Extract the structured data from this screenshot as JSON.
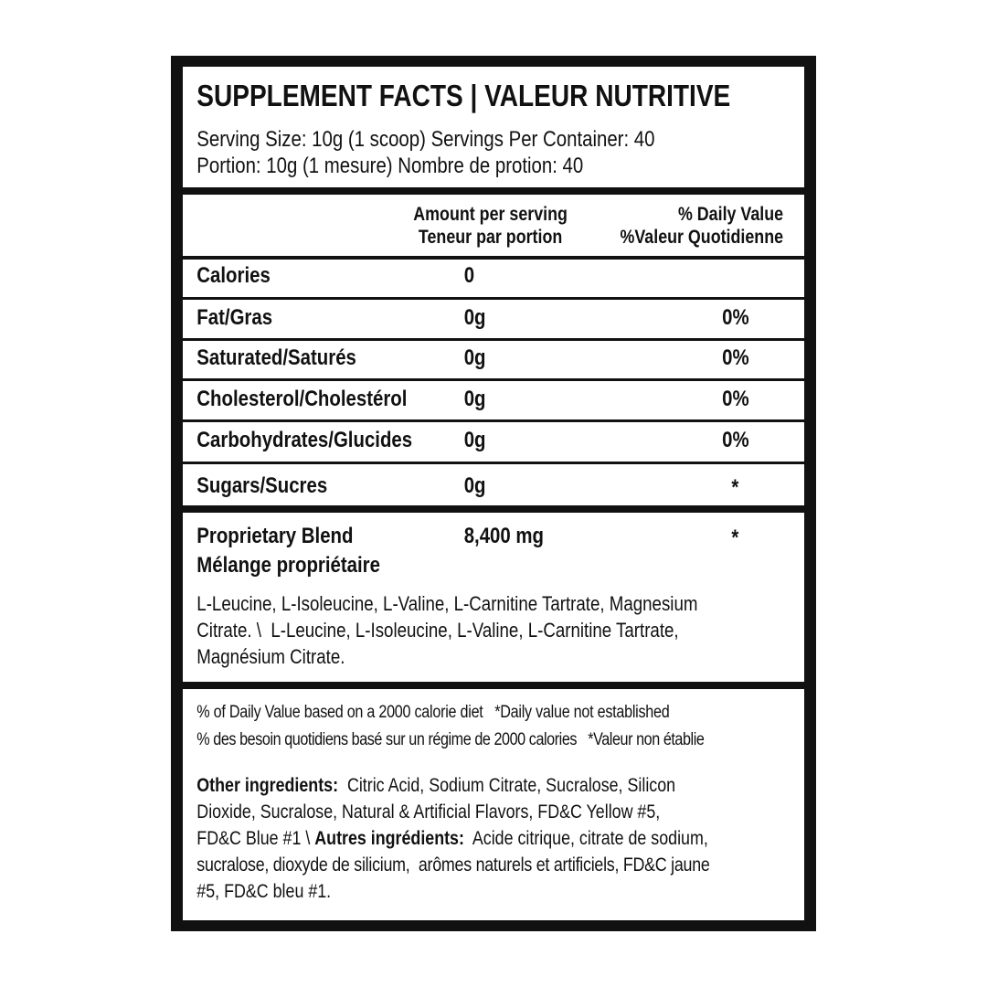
{
  "header": {
    "title": "SUPPLEMENT FACTS | VALEUR NUTRITIVE",
    "serving_en": "Serving Size: 10g (1 scoop) Servings Per Container: 40",
    "serving_fr": "Portion: 10g (1 mesure) Nombre de protion: 40"
  },
  "columns": {
    "amount_en": "Amount per serving",
    "amount_fr": "Teneur par portion",
    "dv_en": "% Daily Value",
    "dv_fr": "%Valeur Quotidienne"
  },
  "rows": [
    {
      "label": "Calories",
      "amount": "0",
      "dv": ""
    },
    {
      "label": "Fat/Gras",
      "amount": "0g",
      "dv": "0%"
    },
    {
      "label": "Saturated/Saturés",
      "amount": "0g",
      "dv": "0%"
    },
    {
      "label": "Cholesterol/Cholestérol",
      "amount": "0g",
      "dv": "0%"
    },
    {
      "label": "Carbohydrates/Glucides",
      "amount": "0g",
      "dv": "0%"
    },
    {
      "label": "Sugars/Sucres",
      "amount": "0g",
      "dv": "*"
    }
  ],
  "blend": {
    "label_en": "Proprietary Blend",
    "label_fr": "Mélange propriétaire",
    "amount": "8,400 mg",
    "dv": "*",
    "ingredients_lines": [
      "L-Leucine, L-Isoleucine, L-Valine, L-Carnitine Tartrate, Magnesium",
      "Citrate. \\  L-Leucine, L-Isoleucine, L-Valine, L-Carnitine Tartrate,",
      "Magnésium Citrate."
    ]
  },
  "footnotes": {
    "line_en": "% of Daily Value based on a 2000 calorie diet   *Daily value not established",
    "line_fr": "% des besoin quotidiens basé sur un régime de 2000 calories   *Valeur non établie"
  },
  "other_ingredients": {
    "label_en": "Other ingredients:",
    "line1": "  Citric Acid, Sodium Citrate, Sucralose, Silicon",
    "line2": "Dioxide, Sucralose, Natural & Artificial Flavors, FD&C Yellow #5,",
    "line3_pre": "FD&C Blue #1 \\ ",
    "label_fr": "Autres ingrédients:",
    "line3_post": "  Acide citrique, citrate de sodium,",
    "line4": "sucralose, dioxyde de silicium,  arômes naturels et artificiels, FD&C jaune",
    "line5": "#5, FD&C bleu #1."
  }
}
